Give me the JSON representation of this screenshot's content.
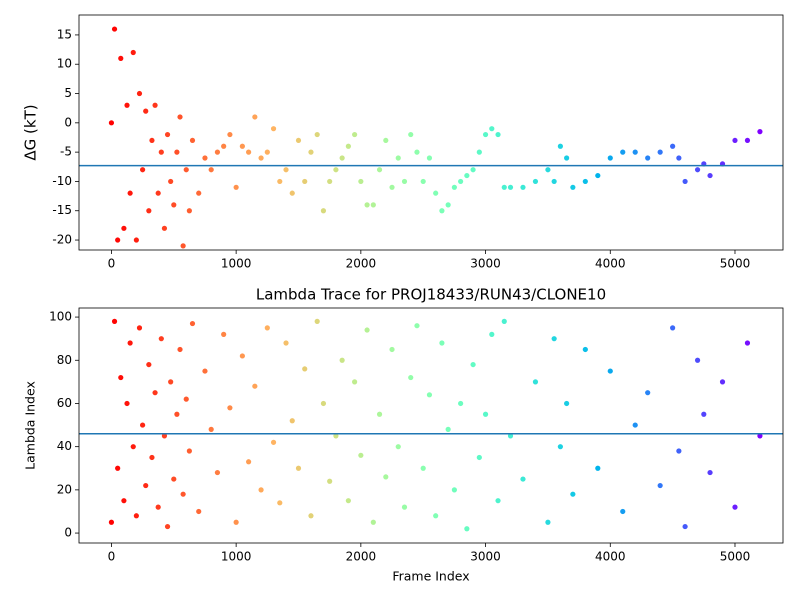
{
  "chart_data": [
    {
      "type": "scatter",
      "ylabel": "ΔG (kT)",
      "colormap": "rainbow_r",
      "hline": -7.3,
      "hline_color": "#1f77b4",
      "xlim": [
        -260,
        5385
      ],
      "ylim": [
        -21.7,
        18.4
      ],
      "xticks": [
        0,
        1000,
        2000,
        3000,
        4000,
        5000
      ],
      "yticks": [
        -20,
        -15,
        -10,
        -5,
        0,
        5,
        10,
        15
      ],
      "x": [
        0,
        25,
        50,
        75,
        100,
        125,
        150,
        175,
        200,
        225,
        250,
        275,
        300,
        325,
        350,
        375,
        400,
        425,
        450,
        475,
        500,
        525,
        550,
        575,
        600,
        625,
        650,
        700,
        750,
        800,
        850,
        900,
        950,
        1000,
        1050,
        1100,
        1150,
        1200,
        1250,
        1300,
        1350,
        1400,
        1450,
        1500,
        1550,
        1600,
        1650,
        1700,
        1750,
        1800,
        1850,
        1900,
        1950,
        2000,
        2050,
        2100,
        2150,
        2200,
        2250,
        2300,
        2350,
        2400,
        2450,
        2500,
        2550,
        2600,
        2650,
        2700,
        2750,
        2800,
        2850,
        2900,
        2950,
        3000,
        3050,
        3100,
        3150,
        3200,
        3300,
        3400,
        3500,
        3550,
        3600,
        3650,
        3700,
        3800,
        3900,
        4000,
        4100,
        4200,
        4300,
        4400,
        4500,
        4550,
        4600,
        4700,
        4750,
        4800,
        4900,
        5000,
        5100,
        5200
      ],
      "values": [
        0,
        16,
        -20,
        11,
        -18,
        3,
        -12,
        12,
        -20,
        5,
        -8,
        2,
        -15,
        -3,
        3,
        -12,
        -5,
        -18,
        -2,
        -10,
        -14,
        -5,
        1,
        -21,
        -8,
        -15,
        -3,
        -12,
        -6,
        -8,
        -5,
        -4,
        -2,
        -11,
        -4,
        -5,
        1,
        -6,
        -5,
        -1,
        -10,
        -8,
        -12,
        -3,
        -10,
        -5,
        -2,
        -15,
        -10,
        -8,
        -6,
        -4,
        -2,
        -10,
        -14,
        -14,
        -8,
        -3,
        -11,
        -6,
        -10,
        -2,
        -5,
        -10,
        -6,
        -12,
        -15,
        -14,
        -11,
        -10,
        -9,
        -8,
        -5,
        -2,
        -1,
        -2,
        -11,
        -11,
        -11,
        -10,
        -8,
        -10,
        -4,
        -6,
        -11,
        -10,
        -9,
        -6,
        -5,
        -5,
        -6,
        -5,
        -4,
        -6,
        -10,
        -8,
        -7,
        -9,
        -7,
        -3,
        -3,
        -1.5
      ]
    },
    {
      "type": "scatter",
      "title": "Lambda Trace for PROJ18433/RUN43/CLONE10",
      "xlabel": "Frame Index",
      "ylabel": "Lambda Index",
      "colormap": "rainbow_r",
      "hline": 46,
      "hline_color": "#1f77b4",
      "xlim": [
        -260,
        5385
      ],
      "ylim": [
        -4.6,
        104.2
      ],
      "xticks": [
        0,
        1000,
        2000,
        3000,
        4000,
        5000
      ],
      "yticks": [
        0,
        20,
        40,
        60,
        80,
        100
      ],
      "x": [
        0,
        25,
        50,
        75,
        100,
        125,
        150,
        175,
        200,
        225,
        250,
        275,
        300,
        325,
        350,
        375,
        400,
        425,
        450,
        475,
        500,
        525,
        550,
        575,
        600,
        625,
        650,
        700,
        750,
        800,
        850,
        900,
        950,
        1000,
        1050,
        1100,
        1150,
        1200,
        1250,
        1300,
        1350,
        1400,
        1450,
        1500,
        1550,
        1600,
        1650,
        1700,
        1750,
        1800,
        1850,
        1900,
        1950,
        2000,
        2050,
        2100,
        2150,
        2200,
        2250,
        2300,
        2350,
        2400,
        2450,
        2500,
        2550,
        2600,
        2650,
        2700,
        2750,
        2800,
        2850,
        2900,
        2950,
        3000,
        3050,
        3100,
        3150,
        3200,
        3300,
        3400,
        3500,
        3550,
        3600,
        3650,
        3700,
        3800,
        3900,
        4000,
        4100,
        4200,
        4300,
        4400,
        4500,
        4550,
        4600,
        4700,
        4750,
        4800,
        4900,
        5000,
        5100,
        5200
      ],
      "values": [
        5,
        98,
        30,
        72,
        15,
        60,
        88,
        40,
        8,
        95,
        50,
        22,
        78,
        35,
        65,
        12,
        90,
        45,
        3,
        70,
        25,
        55,
        85,
        18,
        62,
        38,
        97,
        10,
        75,
        48,
        28,
        92,
        58,
        5,
        82,
        33,
        68,
        20,
        95,
        42,
        14,
        88,
        52,
        30,
        76,
        8,
        98,
        60,
        24,
        45,
        80,
        15,
        70,
        36,
        94,
        5,
        55,
        26,
        85,
        40,
        12,
        72,
        96,
        30,
        64,
        8,
        88,
        48,
        20,
        60,
        2,
        78,
        35,
        55,
        92,
        15,
        98,
        45,
        25,
        70,
        5,
        90,
        40,
        60,
        18,
        85,
        30,
        75,
        10,
        50,
        65,
        22,
        95,
        38,
        3,
        80,
        55,
        28,
        70,
        12,
        88,
        45
      ]
    }
  ]
}
